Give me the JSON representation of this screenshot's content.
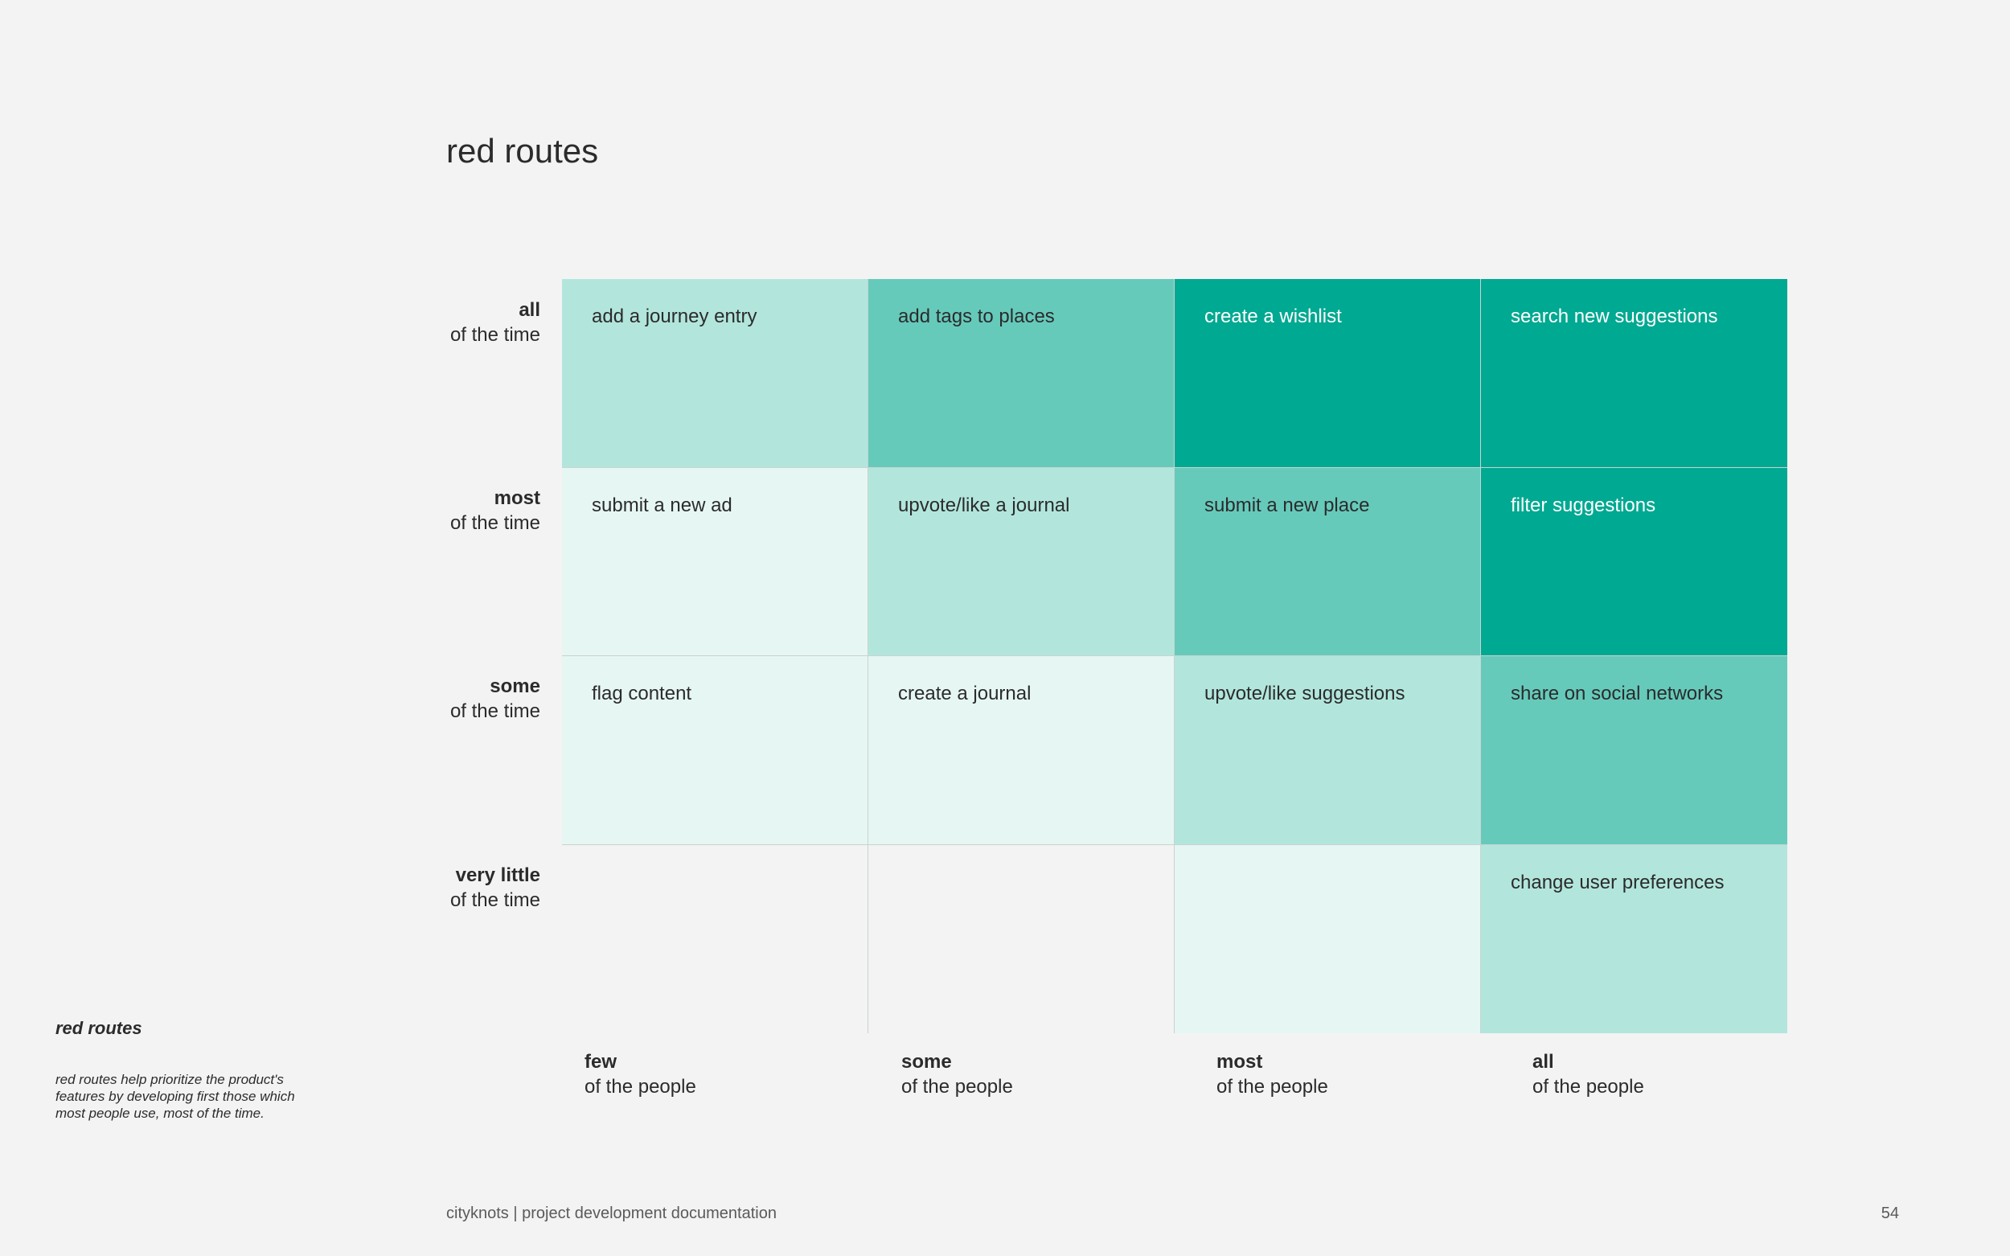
{
  "title": "red routes",
  "rows": [
    {
      "strong": "all",
      "sub": "of the time"
    },
    {
      "strong": "most",
      "sub": "of the time"
    },
    {
      "strong": "some",
      "sub": "of the time"
    },
    {
      "strong": "very little",
      "sub": "of the time"
    }
  ],
  "columns": [
    {
      "strong": "few",
      "sub": "of the people"
    },
    {
      "strong": "some",
      "sub": "of the people"
    },
    {
      "strong": "most",
      "sub": "of the people"
    },
    {
      "strong": "all",
      "sub": "of the people"
    }
  ],
  "cells": [
    [
      {
        "text": "add a journey entry",
        "level": 2
      },
      {
        "text": "add tags to places",
        "level": 3
      },
      {
        "text": "create a wishlist",
        "level": 4
      },
      {
        "text": "search new suggestions",
        "level": 4
      }
    ],
    [
      {
        "text": "submit a new ad",
        "level": 1
      },
      {
        "text": "upvote/like a journal",
        "level": 2
      },
      {
        "text": "submit a new place",
        "level": 3
      },
      {
        "text": "filter suggestions",
        "level": 4
      }
    ],
    [
      {
        "text": "flag content",
        "level": 1
      },
      {
        "text": "create a journal",
        "level": 1
      },
      {
        "text": "upvote/like suggestions",
        "level": 2
      },
      {
        "text": "share on social networks",
        "level": 3
      }
    ],
    [
      {
        "text": "",
        "level": 0
      },
      {
        "text": "",
        "level": 0
      },
      {
        "text": "",
        "level": 1
      },
      {
        "text": "change user preferences",
        "level": 2
      }
    ]
  ],
  "level_colors": [
    "#f3f3f3",
    "#e6f6f3",
    "#b2e6dd",
    "#66cabb",
    "#00a991"
  ],
  "sidebar": {
    "title": "red routes",
    "text": "red routes help prioritize the product's features by developing first those which most people use, most of the time."
  },
  "footer": {
    "left": "cityknots | project development documentation",
    "page": "54"
  }
}
